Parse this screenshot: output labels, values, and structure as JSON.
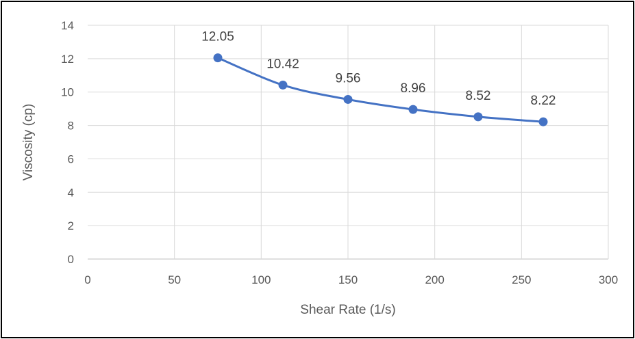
{
  "chart_data": {
    "type": "scatter",
    "title": "",
    "xlabel": "Shear Rate (1/s)",
    "ylabel": "Viscosity (cp)",
    "xlim": [
      0,
      300
    ],
    "ylim": [
      0,
      14
    ],
    "x_ticks": [
      0,
      50,
      100,
      150,
      200,
      250,
      300
    ],
    "y_ticks": [
      0,
      2,
      4,
      6,
      8,
      10,
      12,
      14
    ],
    "grid": true,
    "smooth_line": true,
    "colors": {
      "series": "#4472C4",
      "grid": "#D9D9D9",
      "axis": "#BFBFBF"
    },
    "series": [
      {
        "x": [
          75,
          112.5,
          150,
          187.5,
          225,
          262.5
        ],
        "y": [
          12.05,
          10.42,
          9.56,
          8.96,
          8.52,
          8.22
        ],
        "labels": [
          "12.05",
          "10.42",
          "9.56",
          "8.96",
          "8.52",
          "8.22"
        ]
      }
    ]
  }
}
